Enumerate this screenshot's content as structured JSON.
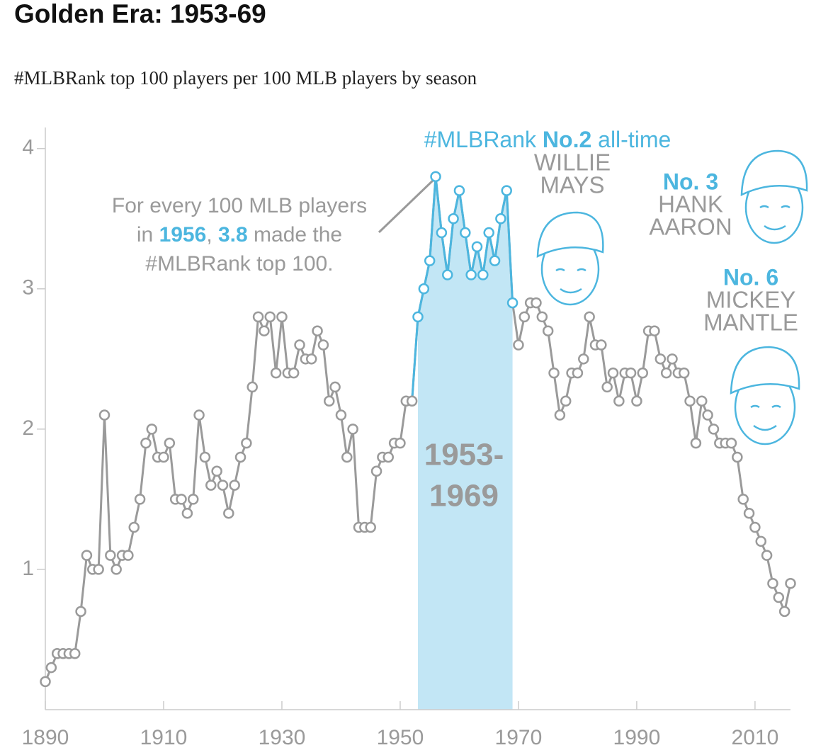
{
  "chart_data": {
    "type": "line",
    "title": "Golden Era: 1953-69",
    "subtitle": "#MLBRank top 100 players per 100 MLB players by season",
    "x": [
      1890,
      1891,
      1892,
      1893,
      1894,
      1895,
      1896,
      1897,
      1898,
      1899,
      1900,
      1901,
      1902,
      1903,
      1904,
      1905,
      1906,
      1907,
      1908,
      1909,
      1910,
      1911,
      1912,
      1913,
      1914,
      1915,
      1916,
      1917,
      1918,
      1919,
      1920,
      1921,
      1922,
      1923,
      1924,
      1925,
      1926,
      1927,
      1928,
      1929,
      1930,
      1931,
      1932,
      1933,
      1934,
      1935,
      1936,
      1937,
      1938,
      1939,
      1940,
      1941,
      1942,
      1943,
      1944,
      1945,
      1946,
      1947,
      1948,
      1949,
      1950,
      1951,
      1952,
      1953,
      1954,
      1955,
      1956,
      1957,
      1958,
      1959,
      1960,
      1961,
      1962,
      1963,
      1964,
      1965,
      1966,
      1967,
      1968,
      1969,
      1970,
      1971,
      1972,
      1973,
      1974,
      1975,
      1976,
      1977,
      1978,
      1979,
      1980,
      1981,
      1982,
      1983,
      1984,
      1985,
      1986,
      1987,
      1988,
      1989,
      1990,
      1991,
      1992,
      1993,
      1994,
      1995,
      1996,
      1997,
      1998,
      1999,
      2000,
      2001,
      2002,
      2003,
      2004,
      2005,
      2006,
      2007,
      2008,
      2009,
      2010,
      2011,
      2012,
      2013,
      2014,
      2015,
      2016
    ],
    "values": [
      0.2,
      0.3,
      0.4,
      0.4,
      0.4,
      0.4,
      0.7,
      1.1,
      1.0,
      1.0,
      2.1,
      1.1,
      1.0,
      1.1,
      1.1,
      1.3,
      1.5,
      1.9,
      2.0,
      1.8,
      1.8,
      1.9,
      1.5,
      1.5,
      1.4,
      1.5,
      2.1,
      1.8,
      1.6,
      1.7,
      1.6,
      1.4,
      1.6,
      1.8,
      1.9,
      2.3,
      2.8,
      2.7,
      2.8,
      2.4,
      2.8,
      2.4,
      2.4,
      2.6,
      2.5,
      2.5,
      2.7,
      2.6,
      2.2,
      2.3,
      2.1,
      1.8,
      2.0,
      1.3,
      1.3,
      1.3,
      1.7,
      1.8,
      1.8,
      1.9,
      1.9,
      2.2,
      2.2,
      2.8,
      3.0,
      3.2,
      3.8,
      3.4,
      3.1,
      3.5,
      3.7,
      3.4,
      3.1,
      3.3,
      3.1,
      3.4,
      3.2,
      3.5,
      3.7,
      2.9,
      2.6,
      2.8,
      2.9,
      2.9,
      2.8,
      2.7,
      2.4,
      2.1,
      2.2,
      2.4,
      2.4,
      2.5,
      2.8,
      2.6,
      2.6,
      2.3,
      2.4,
      2.2,
      2.4,
      2.4,
      2.2,
      2.4,
      2.7,
      2.7,
      2.5,
      2.4,
      2.5,
      2.4,
      2.4,
      2.2,
      1.9,
      2.2,
      2.1,
      2.0,
      1.9,
      1.9,
      1.9,
      1.8,
      1.5,
      1.4,
      1.3,
      1.2,
      1.1,
      0.9,
      0.8,
      0.7,
      0.9
    ],
    "color": "#9a9a9a",
    "highlight": [
      1953,
      1969
    ],
    "highlight_color": "#4cb6df",
    "highlight_fill": "#c2e6f5",
    "highlight_label": [
      "1953-",
      "1969"
    ],
    "xlim": [
      1890,
      2016
    ],
    "xticks": [
      1890,
      1910,
      1930,
      1950,
      1970,
      1990,
      2010
    ],
    "ylim": [
      0,
      4.15
    ],
    "yticks": [
      1,
      2,
      3,
      4
    ],
    "annotation": [
      [
        {
          "text": "For every 100 MLB players",
          "bold": false
        }
      ],
      [
        {
          "text": "in ",
          "bold": false
        },
        {
          "text": "1956",
          "bold": true
        },
        {
          "text": ", ",
          "bold": false
        },
        {
          "text": "3.8",
          "bold": true
        },
        {
          "text": " made the",
          "bold": false
        }
      ],
      [
        {
          "text": "#MLBRank top 100.",
          "bold": false
        }
      ]
    ],
    "rank_header": [
      {
        "text": "#MLBRank ",
        "bold": false
      },
      {
        "text": "No.2",
        "bold": true
      },
      {
        "text": " all-time",
        "bold": false
      }
    ],
    "players": [
      {
        "rank": null,
        "name": [
          "WILLIE",
          "MAYS"
        ]
      },
      {
        "rank": "No. 3",
        "name": [
          "HANK",
          "AARON"
        ]
      },
      {
        "rank": "No. 6",
        "name": [
          "MICKEY",
          "MANTLE"
        ]
      }
    ]
  }
}
